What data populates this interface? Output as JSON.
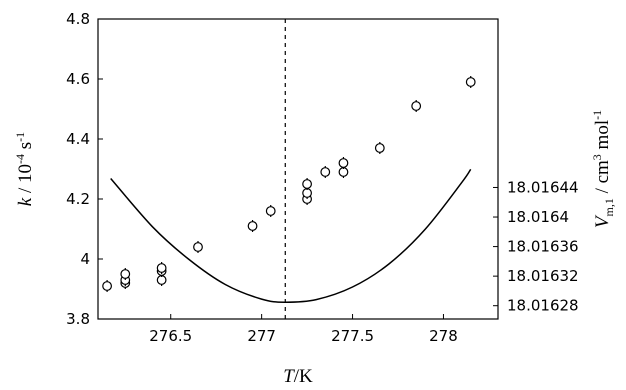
{
  "chart_data": {
    "type": "scatter",
    "title": "",
    "xlabel": {
      "symbol": "T",
      "unit": "/K"
    },
    "ylabel_left": {
      "symbol": "k",
      "unit": " / 10",
      "exponent": "-4",
      "unit2": " s",
      "exponent2": "-1"
    },
    "ylabel_right": {
      "symbol": "V",
      "subscript": "m,1",
      "unit": " / cm",
      "exponent": "3",
      "unit2": " mol",
      "exponent2": "-1"
    },
    "xlim": [
      276.1,
      278.3
    ],
    "ylim_left": [
      3.8,
      4.8
    ],
    "ylim_right": [
      18.016262,
      18.016668
    ],
    "x_ticks": [
      276.5,
      277,
      277.5,
      278
    ],
    "x_tick_labels": [
      "276.5",
      "277",
      "277.5",
      "278"
    ],
    "y_left_ticks": [
      3.8,
      4.0,
      4.2,
      4.4,
      4.6,
      4.8
    ],
    "y_left_tick_labels": [
      "3.8",
      "4",
      "4.2",
      "4.4",
      "4.6",
      "4.8"
    ],
    "y_right_ticks": [
      18.01628,
      18.01632,
      18.01636,
      18.0164,
      18.01644
    ],
    "y_right_tick_labels": [
      "18.01628",
      "18.01632",
      "18.01636",
      "18.0164",
      "18.01644"
    ],
    "vertical_line_x": 277.13,
    "grid": false,
    "legend": "none",
    "series": [
      {
        "kind": "scatter",
        "axis": "left",
        "x": [
          276.15,
          276.25,
          276.25,
          276.25,
          276.45,
          276.45,
          276.45,
          276.65,
          276.95,
          277.05,
          277.25,
          277.25,
          277.25,
          277.35,
          277.45,
          277.45,
          277.65,
          277.85,
          278.15
        ],
        "y": [
          3.91,
          3.92,
          3.93,
          3.95,
          3.93,
          3.96,
          3.97,
          4.04,
          4.11,
          4.16,
          4.2,
          4.22,
          4.25,
          4.29,
          4.29,
          4.32,
          4.37,
          4.51,
          4.59
        ],
        "error": 0.02
      },
      {
        "kind": "line",
        "axis": "right",
        "x": [
          276.17,
          276.4,
          276.6,
          276.8,
          277.0,
          277.13,
          277.3,
          277.5,
          277.7,
          277.9,
          278.1,
          278.15
        ],
        "y": [
          18.0164521,
          18.0163868,
          18.0163427,
          18.0163087,
          18.0162889,
          18.0162848,
          18.0162883,
          18.0163053,
          18.0163365,
          18.0163836,
          18.0164465,
          18.0164646
        ]
      }
    ]
  }
}
